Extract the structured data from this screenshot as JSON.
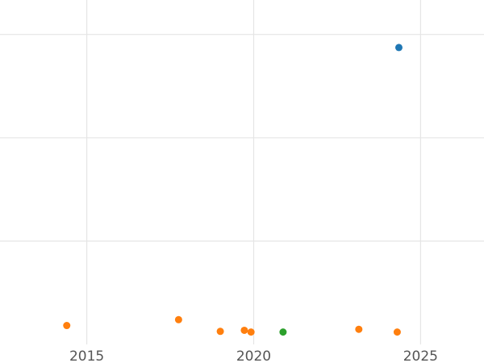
{
  "chart_data": {
    "type": "scatter",
    "title": "",
    "xlabel": "",
    "ylabel": "",
    "grid": true,
    "xlim": [
      2012.4,
      2026.9
    ],
    "ylim": [
      0,
      1
    ],
    "x_ticks": [
      {
        "value": 2015,
        "label": "2015"
      },
      {
        "value": 2020,
        "label": "2020"
      },
      {
        "value": 2025,
        "label": "2025"
      }
    ],
    "y_grid_values": [
      0.3,
      0.6,
      0.9
    ],
    "series": [
      {
        "color": "#1f77b4",
        "points": [
          {
            "x": 2024.35,
            "y": 0.862
          }
        ]
      },
      {
        "color": "#ff7f0e",
        "points": [
          {
            "x": 2014.4,
            "y": 0.055
          },
          {
            "x": 2017.75,
            "y": 0.072
          },
          {
            "x": 2019.0,
            "y": 0.038
          },
          {
            "x": 2019.72,
            "y": 0.041
          },
          {
            "x": 2019.92,
            "y": 0.036
          },
          {
            "x": 2023.15,
            "y": 0.044
          },
          {
            "x": 2024.3,
            "y": 0.036
          }
        ]
      },
      {
        "color": "#2ca02c",
        "points": [
          {
            "x": 2020.88,
            "y": 0.036
          }
        ]
      }
    ]
  }
}
